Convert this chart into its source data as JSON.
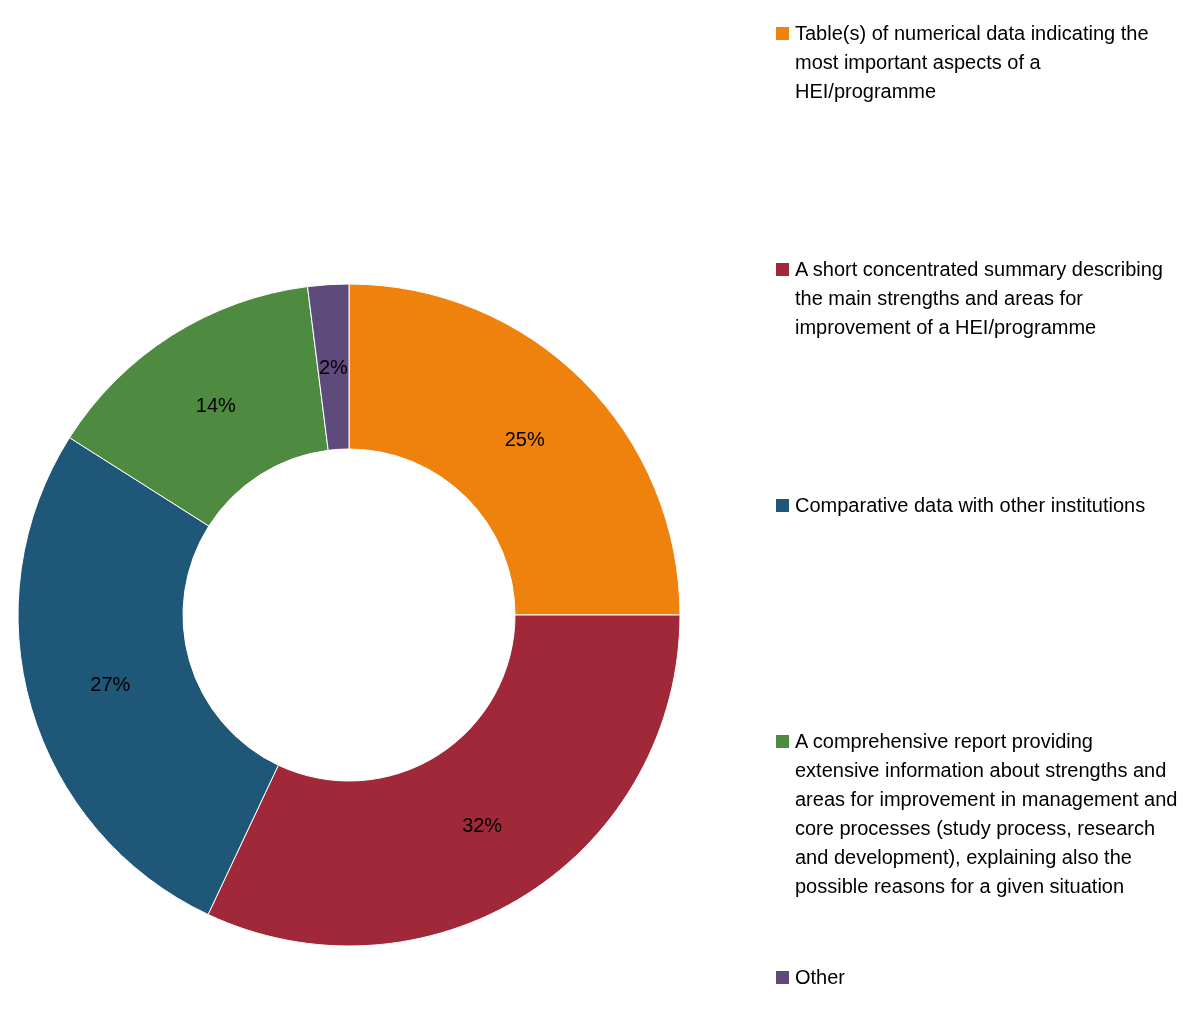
{
  "chart_data": {
    "type": "donut",
    "categories": [
      "Table(s) of numerical data indicating the most important aspects  of a HEI/programme",
      "A short concentrated summary describing the main strengths and areas for improvement of a HEI/programme",
      "Comparative data with other institutions",
      "A comprehensive report providing extensive information about strengths and areas for improvement in management and core processes (study process, research and development), explaining also the possible reasons for a given situation",
      "Other"
    ],
    "values": [
      25,
      32,
      27,
      14,
      2
    ],
    "colors": [
      "#ef820d",
      "#a02838",
      "#1f5779",
      "#4e8a3f",
      "#5f4a7c"
    ],
    "value_labels": [
      "25%",
      "32%",
      "27%",
      "14%",
      "2%"
    ],
    "legend": "right"
  }
}
